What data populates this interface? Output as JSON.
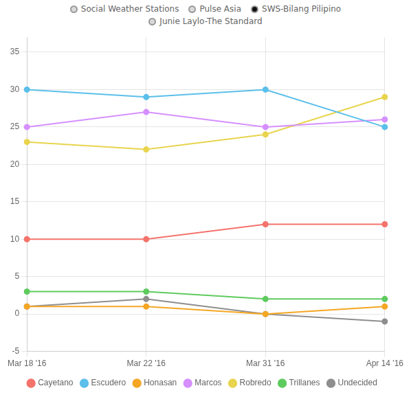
{
  "chart_data": {
    "type": "line",
    "categories": [
      "Mar 18 '16",
      "Mar 22 '16",
      "Mar 31 '16",
      "Apr 14 '16"
    ],
    "series": [
      {
        "name": "Cayetano",
        "color": "#f4736b",
        "values": [
          10,
          10,
          12,
          12
        ]
      },
      {
        "name": "Escudero",
        "color": "#5bbfea",
        "values": [
          30,
          29,
          30,
          25
        ]
      },
      {
        "name": "Honasan",
        "color": "#f5a623",
        "values": [
          1,
          1,
          0,
          1
        ]
      },
      {
        "name": "Marcos",
        "color": "#d68fff",
        "values": [
          25,
          27,
          25,
          26
        ]
      },
      {
        "name": "Robredo",
        "color": "#e8d44d",
        "values": [
          23,
          22,
          24,
          29
        ]
      },
      {
        "name": "Trillanes",
        "color": "#5ecb5e",
        "values": [
          3,
          3,
          2,
          2
        ]
      },
      {
        "name": "Undecided",
        "color": "#8e8e8e",
        "values": [
          1,
          2,
          0,
          -1
        ]
      }
    ],
    "ylim": [
      -5,
      37
    ],
    "yticks": [
      -5,
      0,
      5,
      10,
      15,
      20,
      25,
      30,
      35
    ],
    "grid": true,
    "legend": "bottom",
    "marker": "circle",
    "annotations": [
      {
        "text": "Social Weather Stations",
        "color": "#d9d9d9"
      },
      {
        "text": "Pulse Asia",
        "color": "#d9d9d9"
      },
      {
        "text": "SWS-Bilang Pilipino",
        "color": "#111111"
      },
      {
        "text": "Junie Laylo-The Standard",
        "color": "#d9d9d9"
      }
    ]
  }
}
